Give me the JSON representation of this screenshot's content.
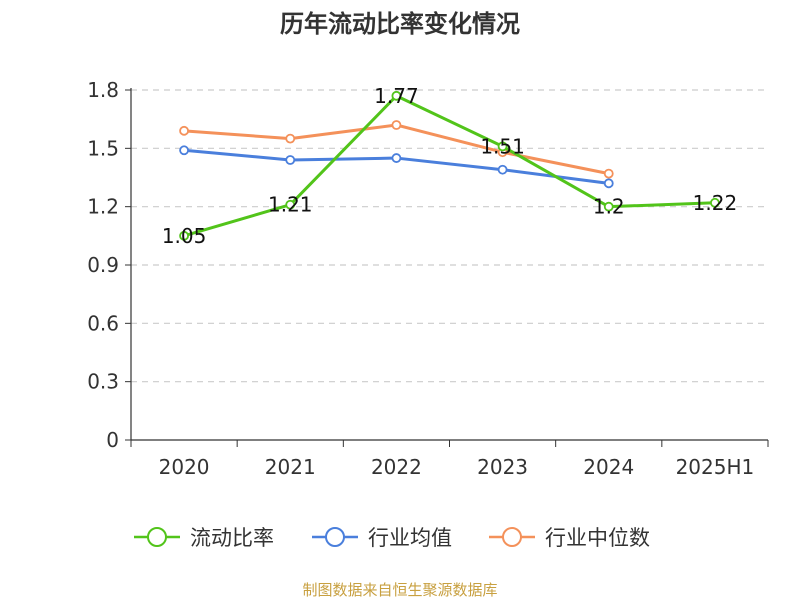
{
  "chart_data": {
    "type": "line",
    "title": "历年流动比率变化情况",
    "categories": [
      "2020",
      "2021",
      "2022",
      "2023",
      "2024",
      "2025H1"
    ],
    "ylim": [
      0,
      1.8
    ],
    "yticks": [
      "0",
      "0.3",
      "0.6",
      "0.9",
      "1.2",
      "1.5",
      "1.8"
    ],
    "grid": true,
    "legend_position": "bottom",
    "series": [
      {
        "name": "流动比率",
        "color": "#52c41a",
        "values": [
          1.05,
          1.21,
          1.77,
          1.51,
          1.2,
          1.22
        ],
        "labels": [
          "1.05",
          "1.21",
          "1.77",
          "1.51",
          "1.2",
          "1.22"
        ]
      },
      {
        "name": "行业均值",
        "color": "#4a7fdc",
        "values": [
          1.49,
          1.44,
          1.45,
          1.39,
          1.32,
          null
        ]
      },
      {
        "name": "行业中位数",
        "color": "#f4915a",
        "values": [
          1.59,
          1.55,
          1.62,
          1.48,
          1.37,
          null
        ]
      }
    ],
    "source": "制图数据来自恒生聚源数据库"
  }
}
